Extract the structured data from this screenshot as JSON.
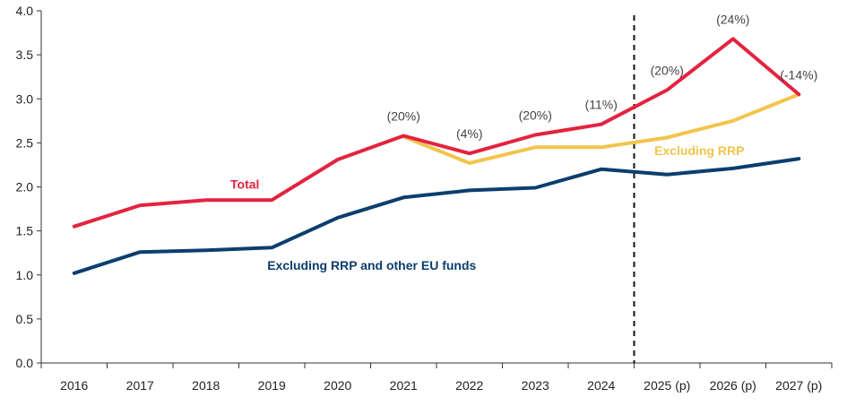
{
  "chart_data": {
    "type": "line",
    "categories": [
      "2016",
      "2017",
      "2018",
      "2019",
      "2020",
      "2021",
      "2022",
      "2023",
      "2024",
      "2025 (p)",
      "2026 (p)",
      "2027 (p)"
    ],
    "ylim": [
      0,
      4.0
    ],
    "y_ticks": [
      "0.0",
      "0.5",
      "1.0",
      "1.5",
      "2.0",
      "2.5",
      "3.0",
      "3.5",
      "4.0"
    ],
    "grid": false,
    "projection_divider_after": "2024",
    "series": [
      {
        "name": "Total",
        "color": "#e3233f",
        "values": [
          1.55,
          1.79,
          1.85,
          1.85,
          2.31,
          2.58,
          2.38,
          2.59,
          2.71,
          3.1,
          3.68,
          3.05
        ]
      },
      {
        "name": "Excluding RRP",
        "color": "#f2c44c",
        "values": [
          null,
          null,
          null,
          null,
          null,
          2.57,
          2.27,
          2.45,
          2.45,
          2.56,
          2.75,
          3.05
        ]
      },
      {
        "name": "Excluding RRP and other EU funds",
        "color": "#0b3e6f",
        "values": [
          1.02,
          1.26,
          1.28,
          1.31,
          1.65,
          1.88,
          1.96,
          1.99,
          2.2,
          2.14,
          2.21,
          2.32
        ]
      }
    ],
    "annotations": [
      {
        "text": "(20%)",
        "x": "2021",
        "y": 2.58
      },
      {
        "text": "(4%)",
        "x": "2022",
        "y": 2.38
      },
      {
        "text": "(20%)",
        "x": "2023",
        "y": 2.59
      },
      {
        "text": "(11%)",
        "x": "2024",
        "y": 2.71
      },
      {
        "text": "(20%)",
        "x": "2025 (p)",
        "y": 3.1
      },
      {
        "text": "(24%)",
        "x": "2026 (p)",
        "y": 3.68
      },
      {
        "text": "(-14%)",
        "x": "2027 (p)",
        "y": 3.05
      }
    ]
  }
}
